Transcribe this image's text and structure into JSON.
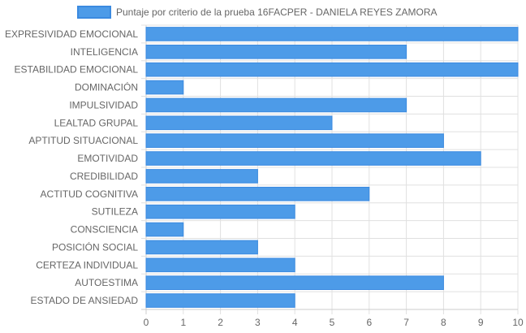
{
  "chart_data": {
    "type": "bar",
    "orientation": "horizontal",
    "legend": {
      "label": "Puntaje por criterio de la prueba 16FACPER - DANIELA REYES ZAMORA",
      "position": "top-center"
    },
    "categories": [
      "EXPRESIVIDAD EMOCIONAL",
      "INTELIGENCIA",
      "ESTABILIDAD EMOCIONAL",
      "DOMINACIÓN",
      "IMPULSIVIDAD",
      "LEALTAD GRUPAL",
      "APTITUD SITUACIONAL",
      "EMOTIVIDAD",
      "CREDIBILIDAD",
      "ACTITUD COGNITIVA",
      "SUTILEZA",
      "CONSCIENCIA",
      "POSICIÓN SOCIAL",
      "CERTEZA INDIVIDUAL",
      "AUTOESTIMA",
      "ESTADO DE ANSIEDAD"
    ],
    "series": [
      {
        "name": "Puntaje por criterio de la prueba 16FACPER - DANIELA REYES ZAMORA",
        "values": [
          10,
          7,
          10,
          1,
          7,
          5,
          8,
          9,
          3,
          6,
          4,
          1,
          3,
          4,
          8,
          4
        ]
      }
    ],
    "xlim": [
      0,
      10
    ],
    "xticks": [
      "0",
      "1",
      "2",
      "3",
      "4",
      "5",
      "6",
      "7",
      "8",
      "9",
      "10"
    ],
    "grid": true,
    "colors": {
      "bar_fill": "#4d9be8",
      "bar_stroke": "#3b8ae0",
      "grid": "#e0e0e0",
      "axis": "#cccccc",
      "text": "#666666"
    }
  }
}
